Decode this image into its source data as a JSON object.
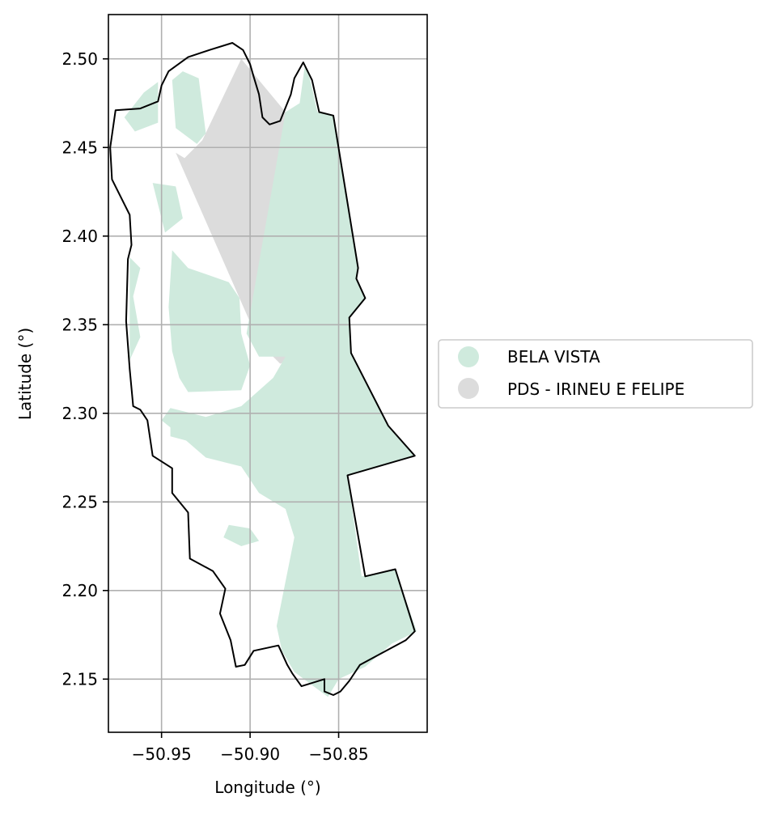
{
  "chart_data": {
    "type": "map",
    "xlabel": "Longitude (°)",
    "ylabel": "Latitude (°)",
    "xlim": [
      -50.98,
      -50.8
    ],
    "ylim": [
      2.12,
      2.525
    ],
    "x_ticks": [
      -50.95,
      -50.9,
      -50.85
    ],
    "x_tick_labels": [
      "−50.95",
      "−50.90",
      "−50.85"
    ],
    "y_ticks": [
      2.15,
      2.2,
      2.25,
      2.3,
      2.35,
      2.4,
      2.45,
      2.5
    ],
    "y_tick_labels": [
      "2.15",
      "2.20",
      "2.25",
      "2.30",
      "2.35",
      "2.40",
      "2.45",
      "2.50"
    ],
    "grid": true,
    "legend_position": "right",
    "legend": [
      {
        "label": "BELA VISTA",
        "color": "#cfeadd"
      },
      {
        "label": "PDS - IRINEU E FELIPE",
        "color": "#dcdcdc"
      }
    ],
    "boundary_color": "#000000",
    "layers": [
      {
        "name": "PDS - IRINEU E FELIPE",
        "color": "#dcdcdc",
        "coordinates": [
          [
            -50.905,
            2.5
          ],
          [
            -50.88,
            2.47
          ],
          [
            -50.852,
            2.34
          ],
          [
            -50.883,
            2.328
          ],
          [
            -50.895,
            2.34
          ],
          [
            -50.942,
            2.447
          ],
          [
            -50.937,
            2.444
          ],
          [
            -50.927,
            2.454
          ]
        ]
      },
      {
        "name": "BELA VISTA",
        "color": "#cfeadd",
        "coordinates": [
          [
            -50.872,
            2.475
          ],
          [
            -50.869,
            2.497
          ],
          [
            -50.866,
            2.488
          ],
          [
            -50.862,
            2.47
          ],
          [
            -50.853,
            2.468
          ],
          [
            -50.839,
            2.382
          ],
          [
            -50.84,
            2.376
          ],
          [
            -50.835,
            2.365
          ],
          [
            -50.844,
            2.354
          ],
          [
            -50.843,
            2.334
          ],
          [
            -50.822,
            2.293
          ],
          [
            -50.807,
            2.276
          ],
          [
            -50.845,
            2.265
          ],
          [
            -50.837,
            2.208
          ],
          [
            -50.818,
            2.212
          ],
          [
            -50.806,
            2.177
          ],
          [
            -50.82,
            2.17
          ],
          [
            -50.835,
            2.157
          ],
          [
            -50.85,
            2.15
          ],
          [
            -50.856,
            2.14
          ],
          [
            -50.875,
            2.154
          ],
          [
            -50.882,
            2.166
          ],
          [
            -50.885,
            2.18
          ],
          [
            -50.875,
            2.23
          ],
          [
            -50.88,
            2.246
          ],
          [
            -50.895,
            2.255
          ],
          [
            -50.905,
            2.27
          ],
          [
            -50.925,
            2.275
          ],
          [
            -50.94,
            2.288
          ],
          [
            -50.95,
            2.296
          ],
          [
            -50.945,
            2.303
          ],
          [
            -50.925,
            2.298
          ],
          [
            -50.905,
            2.304
          ],
          [
            -50.887,
            2.32
          ],
          [
            -50.88,
            2.332
          ],
          [
            -50.895,
            2.332
          ],
          [
            -50.902,
            2.345
          ],
          [
            -50.88,
            2.47
          ]
        ]
      },
      {
        "name": "BELA VISTA",
        "color": "#cfeadd",
        "coordinates": [
          [
            -50.944,
            2.392
          ],
          [
            -50.935,
            2.382
          ],
          [
            -50.912,
            2.374
          ],
          [
            -50.906,
            2.365
          ],
          [
            -50.905,
            2.345
          ],
          [
            -50.9,
            2.327
          ],
          [
            -50.905,
            2.313
          ],
          [
            -50.935,
            2.312
          ],
          [
            -50.94,
            2.32
          ],
          [
            -50.944,
            2.335
          ],
          [
            -50.946,
            2.36
          ]
        ]
      },
      {
        "name": "BELA VISTA",
        "color": "#cfeadd",
        "coordinates": [
          [
            -50.955,
            2.43
          ],
          [
            -50.942,
            2.428
          ],
          [
            -50.938,
            2.41
          ],
          [
            -50.948,
            2.402
          ]
        ]
      },
      {
        "name": "BELA VISTA",
        "color": "#cfeadd",
        "coordinates": [
          [
            -50.944,
            2.488
          ],
          [
            -50.938,
            2.493
          ],
          [
            -50.929,
            2.489
          ],
          [
            -50.925,
            2.458
          ],
          [
            -50.93,
            2.452
          ],
          [
            -50.942,
            2.461
          ]
        ]
      },
      {
        "name": "BELA VISTA",
        "color": "#cfeadd",
        "coordinates": [
          [
            -50.971,
            2.467
          ],
          [
            -50.96,
            2.481
          ],
          [
            -50.952,
            2.487
          ],
          [
            -50.952,
            2.464
          ],
          [
            -50.965,
            2.459
          ]
        ]
      },
      {
        "name": "BELA VISTA",
        "color": "#cfeadd",
        "coordinates": [
          [
            -50.968,
            2.388
          ],
          [
            -50.962,
            2.382
          ],
          [
            -50.966,
            2.366
          ],
          [
            -50.962,
            2.343
          ],
          [
            -50.968,
            2.33
          ]
        ]
      },
      {
        "name": "BELA VISTA",
        "color": "#cfeadd",
        "coordinates": [
          [
            -50.915,
            2.23
          ],
          [
            -50.905,
            2.225
          ],
          [
            -50.895,
            2.228
          ],
          [
            -50.9,
            2.235
          ],
          [
            -50.912,
            2.237
          ]
        ]
      },
      {
        "name": "BELA VISTA",
        "color": "#cfeadd",
        "coordinates": [
          [
            -50.945,
            2.297
          ],
          [
            -50.935,
            2.292
          ],
          [
            -50.925,
            2.291
          ],
          [
            -50.918,
            2.286
          ],
          [
            -50.93,
            2.283
          ],
          [
            -50.945,
            2.287
          ]
        ]
      }
    ],
    "boundary": [
      [
        -50.962,
        2.302
      ],
      [
        -50.958,
        2.296
      ],
      [
        -50.955,
        2.276
      ],
      [
        -50.944,
        2.269
      ],
      [
        -50.944,
        2.255
      ],
      [
        -50.935,
        2.244
      ],
      [
        -50.934,
        2.218
      ],
      [
        -50.921,
        2.211
      ],
      [
        -50.914,
        2.201
      ],
      [
        -50.917,
        2.187
      ],
      [
        -50.911,
        2.172
      ],
      [
        -50.908,
        2.157
      ],
      [
        -50.903,
        2.158
      ],
      [
        -50.898,
        2.166
      ],
      [
        -50.884,
        2.169
      ],
      [
        -50.879,
        2.158
      ],
      [
        -50.876,
        2.153
      ],
      [
        -50.871,
        2.146
      ],
      [
        -50.858,
        2.15
      ],
      [
        -50.858,
        2.143
      ],
      [
        -50.853,
        2.141
      ],
      [
        -50.849,
        2.143
      ],
      [
        -50.844,
        2.149
      ],
      [
        -50.838,
        2.158
      ],
      [
        -50.825,
        2.165
      ],
      [
        -50.812,
        2.172
      ],
      [
        -50.807,
        2.177
      ],
      [
        -50.818,
        2.212
      ],
      [
        -50.835,
        2.208
      ],
      [
        -50.845,
        2.265
      ],
      [
        -50.807,
        2.276
      ],
      [
        -50.822,
        2.293
      ],
      [
        -50.843,
        2.334
      ],
      [
        -50.844,
        2.354
      ],
      [
        -50.835,
        2.365
      ],
      [
        -50.84,
        2.376
      ],
      [
        -50.839,
        2.382
      ],
      [
        -50.853,
        2.468
      ],
      [
        -50.861,
        2.47
      ],
      [
        -50.865,
        2.488
      ],
      [
        -50.87,
        2.498
      ],
      [
        -50.875,
        2.489
      ],
      [
        -50.877,
        2.48
      ],
      [
        -50.883,
        2.465
      ],
      [
        -50.889,
        2.463
      ],
      [
        -50.893,
        2.467
      ],
      [
        -50.895,
        2.48
      ],
      [
        -50.898,
        2.49
      ],
      [
        -50.9,
        2.497
      ],
      [
        -50.904,
        2.505
      ],
      [
        -50.91,
        2.509
      ],
      [
        -50.923,
        2.505
      ],
      [
        -50.935,
        2.501
      ],
      [
        -50.946,
        2.493
      ],
      [
        -50.95,
        2.485
      ],
      [
        -50.952,
        2.476
      ],
      [
        -50.962,
        2.472
      ],
      [
        -50.976,
        2.471
      ],
      [
        -50.979,
        2.45
      ],
      [
        -50.978,
        2.432
      ],
      [
        -50.968,
        2.412
      ],
      [
        -50.967,
        2.395
      ],
      [
        -50.969,
        2.387
      ],
      [
        -50.97,
        2.352
      ],
      [
        -50.968,
        2.325
      ],
      [
        -50.966,
        2.304
      ]
    ]
  }
}
